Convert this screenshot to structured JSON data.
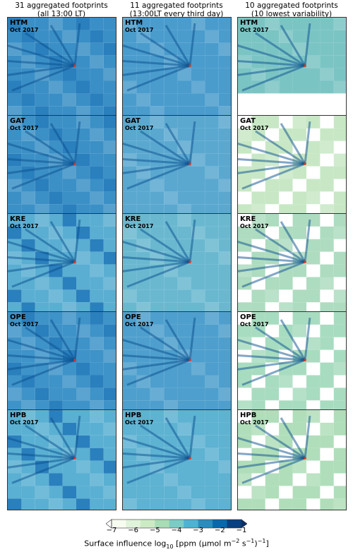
{
  "columns": [
    {
      "line1": "31 aggregated footprints",
      "line2": "(all 13:00 LT)"
    },
    {
      "line1": "11 aggregated footprints",
      "line2": "(13:00LT every third day)"
    },
    {
      "line1": "10 aggregated footprints",
      "line2": "(10 lowest variability)"
    }
  ],
  "rows": [
    {
      "site": "HTM",
      "date": "Oct 2017"
    },
    {
      "site": "GAT",
      "date": "Oct 2017"
    },
    {
      "site": "KRE",
      "date": "Oct 2017"
    },
    {
      "site": "OPE",
      "date": "Oct 2017"
    },
    {
      "site": "HPB",
      "date": "Oct 2017"
    }
  ],
  "colorbar": {
    "ticks": [
      "−7",
      "−6",
      "−5",
      "−4",
      "−3",
      "−2",
      "−1"
    ],
    "title": "Surface influence log",
    "title_sub": "10",
    "title_rest": " [ppm (μmol m",
    "sup1": "−2",
    "mid": " s",
    "sup2": "−1",
    "end": ")",
    "sup3": "−1",
    "end2": "]",
    "colors": [
      "#f7fcf0",
      "#e0f3db",
      "#ccebc5",
      "#a8ddb5",
      "#7bccc4",
      "#4eb3d3",
      "#2b8cbe",
      "#0868ac",
      "#084081"
    ]
  }
}
